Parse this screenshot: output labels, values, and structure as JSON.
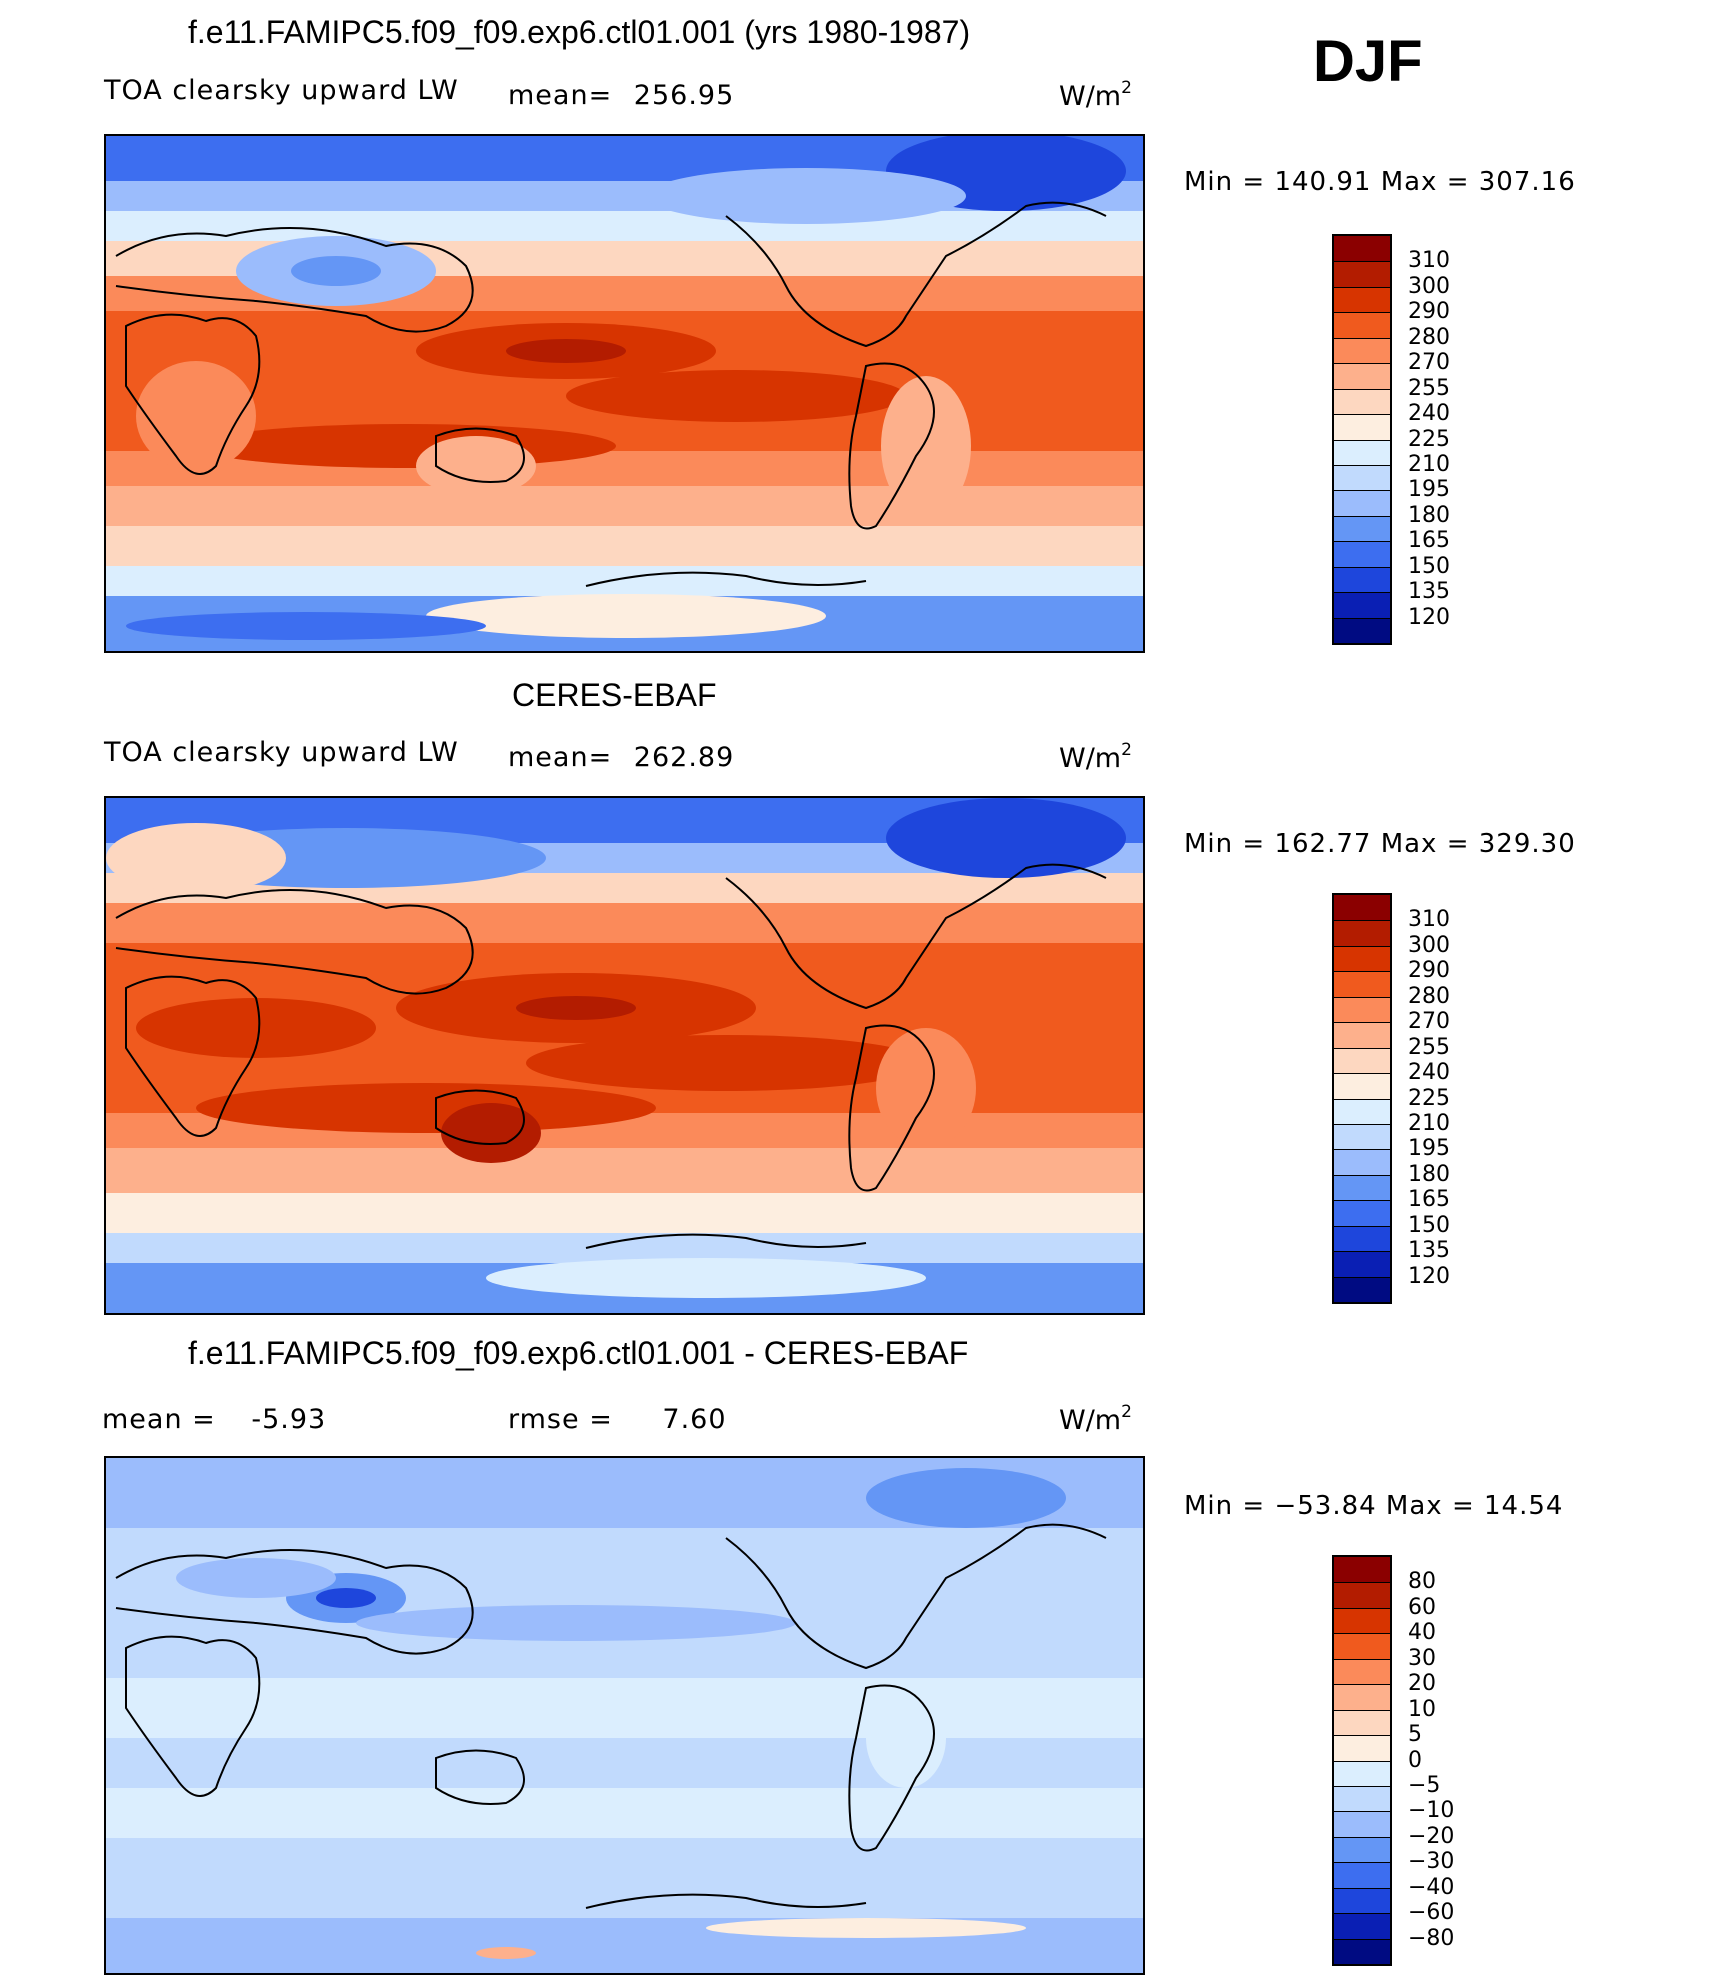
{
  "season": "DJF",
  "units_label": "W/m",
  "units_power": "2",
  "panels": [
    {
      "title": "f.e11.FAMIPC5.f09_f09.exp6.ctl01.001 (yrs 1980-1987)",
      "left_label": "TOA clearsky upward LW",
      "stat_label": "mean=",
      "stat_value": "256.95",
      "min_text": "Min  =  140.91  Max  =  307.16",
      "legend": [
        "310",
        "300",
        "290",
        "280",
        "270",
        "255",
        "240",
        "225",
        "210",
        "195",
        "180",
        "165",
        "150",
        "135",
        "120"
      ],
      "colors": [
        "#8b0000",
        "#b31c00",
        "#d73400",
        "#f05a1e",
        "#fb8a5a",
        "#fdb08c",
        "#fdd7c0",
        "#fdeee0",
        "#dbeefe",
        "#c1dafd",
        "#9bbcfc",
        "#6496f5",
        "#3d6ef0",
        "#1e46dc",
        "#0a1fb4",
        "#000b82"
      ]
    },
    {
      "title": "CERES-EBAF",
      "left_label": "TOA clearsky upward LW",
      "stat_label": "mean=",
      "stat_value": "262.89",
      "min_text": "Min  =  162.77  Max  =  329.30",
      "legend": [
        "310",
        "300",
        "290",
        "280",
        "270",
        "255",
        "240",
        "225",
        "210",
        "195",
        "180",
        "165",
        "150",
        "135",
        "120"
      ],
      "colors": [
        "#8b0000",
        "#b31c00",
        "#d73400",
        "#f05a1e",
        "#fb8a5a",
        "#fdb08c",
        "#fdd7c0",
        "#fdeee0",
        "#dbeefe",
        "#c1dafd",
        "#9bbcfc",
        "#6496f5",
        "#3d6ef0",
        "#1e46dc",
        "#0a1fb4",
        "#000b82"
      ]
    },
    {
      "title": "f.e11.FAMIPC5.f09_f09.exp6.ctl01.001 - CERES-EBAF",
      "left_label": "mean =",
      "left_value": "-5.93",
      "stat_label": "rmse =",
      "stat_value": "7.60",
      "min_text": "Min  =  −53.84  Max  =    14.54",
      "legend": [
        "80",
        "60",
        "40",
        "30",
        "20",
        "10",
        "5",
        "0",
        "−5",
        "−10",
        "−20",
        "−30",
        "−40",
        "−60",
        "−80"
      ],
      "colors": [
        "#8b0000",
        "#b31c00",
        "#d73400",
        "#f05a1e",
        "#fb8a5a",
        "#fdb08c",
        "#fdd7c0",
        "#fdeee0",
        "#dbeefe",
        "#c1dafd",
        "#9bbcfc",
        "#6496f5",
        "#3d6ef0",
        "#1e46dc",
        "#0a1fb4",
        "#000b82"
      ]
    }
  ]
}
